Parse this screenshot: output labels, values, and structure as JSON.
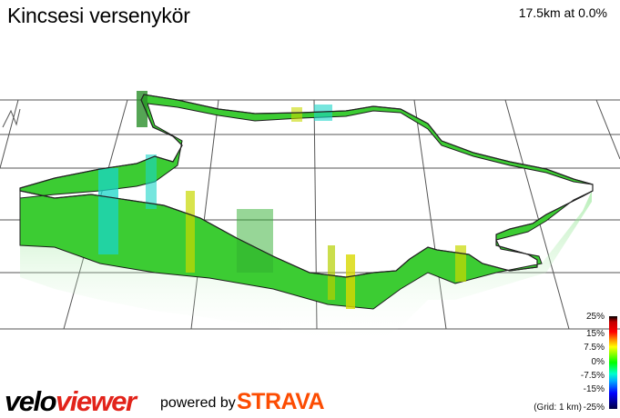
{
  "header": {
    "title": "Kincsesi versenykör",
    "stats": "17.5km at 0.0%"
  },
  "legend": {
    "labels": [
      "25%",
      "15%",
      "7.5%",
      "0%",
      "-7.5%",
      "-15%",
      "-25%"
    ],
    "grid_note": "(Grid: 1 km)"
  },
  "branding": {
    "logo_part1": "velo",
    "logo_part2": "viewer",
    "powered_by": "powered by",
    "strava": "STRAVA"
  },
  "colors": {
    "route_green": "#22cc22",
    "route_cyan": "#1ad6c8",
    "route_yellow": "#c8d800",
    "grid": "#555555",
    "strava_orange": "#fc4c02",
    "veloviewer_red": "#e2231a"
  }
}
